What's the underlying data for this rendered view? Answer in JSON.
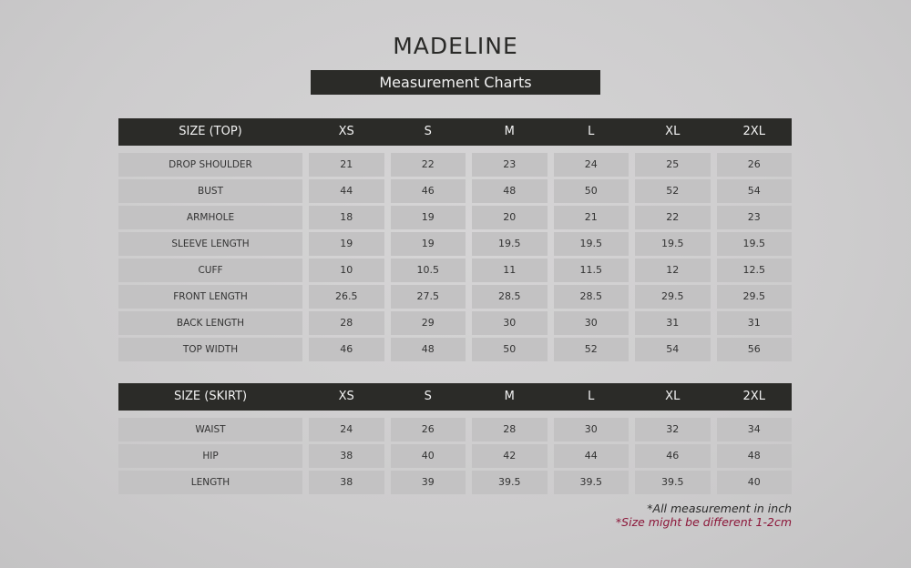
{
  "title": "MADELINE",
  "subtitle": "Measurement Charts",
  "tables": [
    {
      "header": [
        "SIZE (TOP)",
        "XS",
        "S",
        "M",
        "L",
        "XL",
        "2XL"
      ],
      "rows": [
        [
          "DROP SHOULDER",
          "21",
          "22",
          "23",
          "24",
          "25",
          "26"
        ],
        [
          "BUST",
          "44",
          "46",
          "48",
          "50",
          "52",
          "54"
        ],
        [
          "ARMHOLE",
          "18",
          "19",
          "20",
          "21",
          "22",
          "23"
        ],
        [
          "SLEEVE LENGTH",
          "19",
          "19",
          "19.5",
          "19.5",
          "19.5",
          "19.5"
        ],
        [
          "CUFF",
          "10",
          "10.5",
          "11",
          "11.5",
          "12",
          "12.5"
        ],
        [
          "FRONT LENGTH",
          "26.5",
          "27.5",
          "28.5",
          "28.5",
          "29.5",
          "29.5"
        ],
        [
          "BACK LENGTH",
          "28",
          "29",
          "30",
          "30",
          "31",
          "31"
        ],
        [
          "TOP WIDTH",
          "46",
          "48",
          "50",
          "52",
          "54",
          "56"
        ]
      ]
    },
    {
      "header": [
        "SIZE (SKIRT)",
        "XS",
        "S",
        "M",
        "L",
        "XL",
        "2XL"
      ],
      "rows": [
        [
          "WAIST",
          "24",
          "26",
          "28",
          "30",
          "32",
          "34"
        ],
        [
          "HIP",
          "38",
          "40",
          "42",
          "44",
          "46",
          "48"
        ],
        [
          "LENGTH",
          "38",
          "39",
          "39.5",
          "39.5",
          "39.5",
          "40"
        ]
      ]
    }
  ],
  "notes": {
    "unit": "*All measurement in inch",
    "variance": "*Size might be different 1-2cm"
  },
  "colors": {
    "header_bg": "#2b2b28",
    "cell_bg": "#c3c2c3",
    "note_accent": "#8b1538"
  }
}
